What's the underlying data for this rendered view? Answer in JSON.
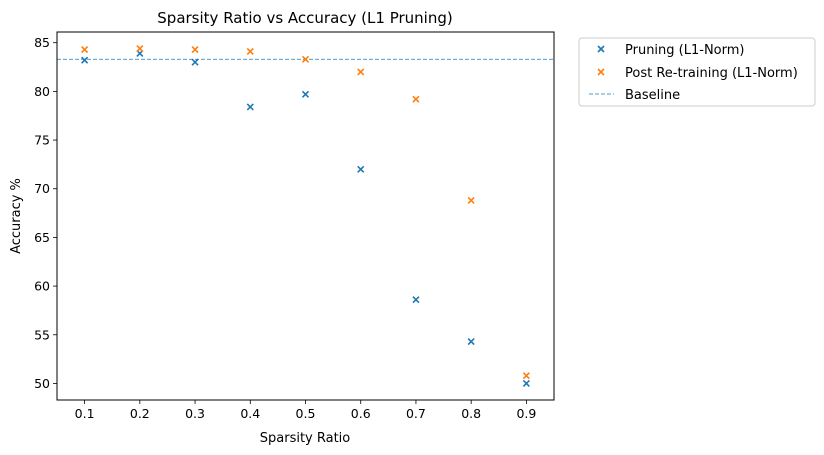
{
  "chart_data": {
    "type": "scatter",
    "title": "Sparsity Ratio vs Accuracy (L1 Pruning)",
    "xlabel": "Sparsity Ratio",
    "ylabel": "Accuracy %",
    "x": [
      0.1,
      0.2,
      0.3,
      0.4,
      0.5,
      0.6,
      0.7,
      0.8,
      0.9
    ],
    "xlim": [
      0.05,
      0.95
    ],
    "ylim": [
      48.3,
      86.1
    ],
    "xticks": [
      "0.1",
      "0.2",
      "0.3",
      "0.4",
      "0.5",
      "0.6",
      "0.7",
      "0.8",
      "0.9"
    ],
    "yticks": [
      "50",
      "55",
      "60",
      "65",
      "70",
      "75",
      "80",
      "85"
    ],
    "series": [
      {
        "name": "Pruning (L1-Norm)",
        "marker": "x",
        "color": "#1f77b4",
        "values": [
          83.2,
          83.9,
          83.0,
          78.4,
          79.7,
          72.0,
          58.6,
          54.3,
          50.0
        ]
      },
      {
        "name": "Post Re-training (L1-Norm)",
        "marker": "x",
        "color": "#ff7f0e",
        "values": [
          84.3,
          84.4,
          84.3,
          84.1,
          83.3,
          82.0,
          79.2,
          68.8,
          50.8
        ]
      }
    ],
    "baseline": {
      "name": "Baseline",
      "value": 83.3,
      "color": "#1f77b4",
      "style": "dashed"
    },
    "grid": false,
    "legend_position": "outside-top-right"
  }
}
